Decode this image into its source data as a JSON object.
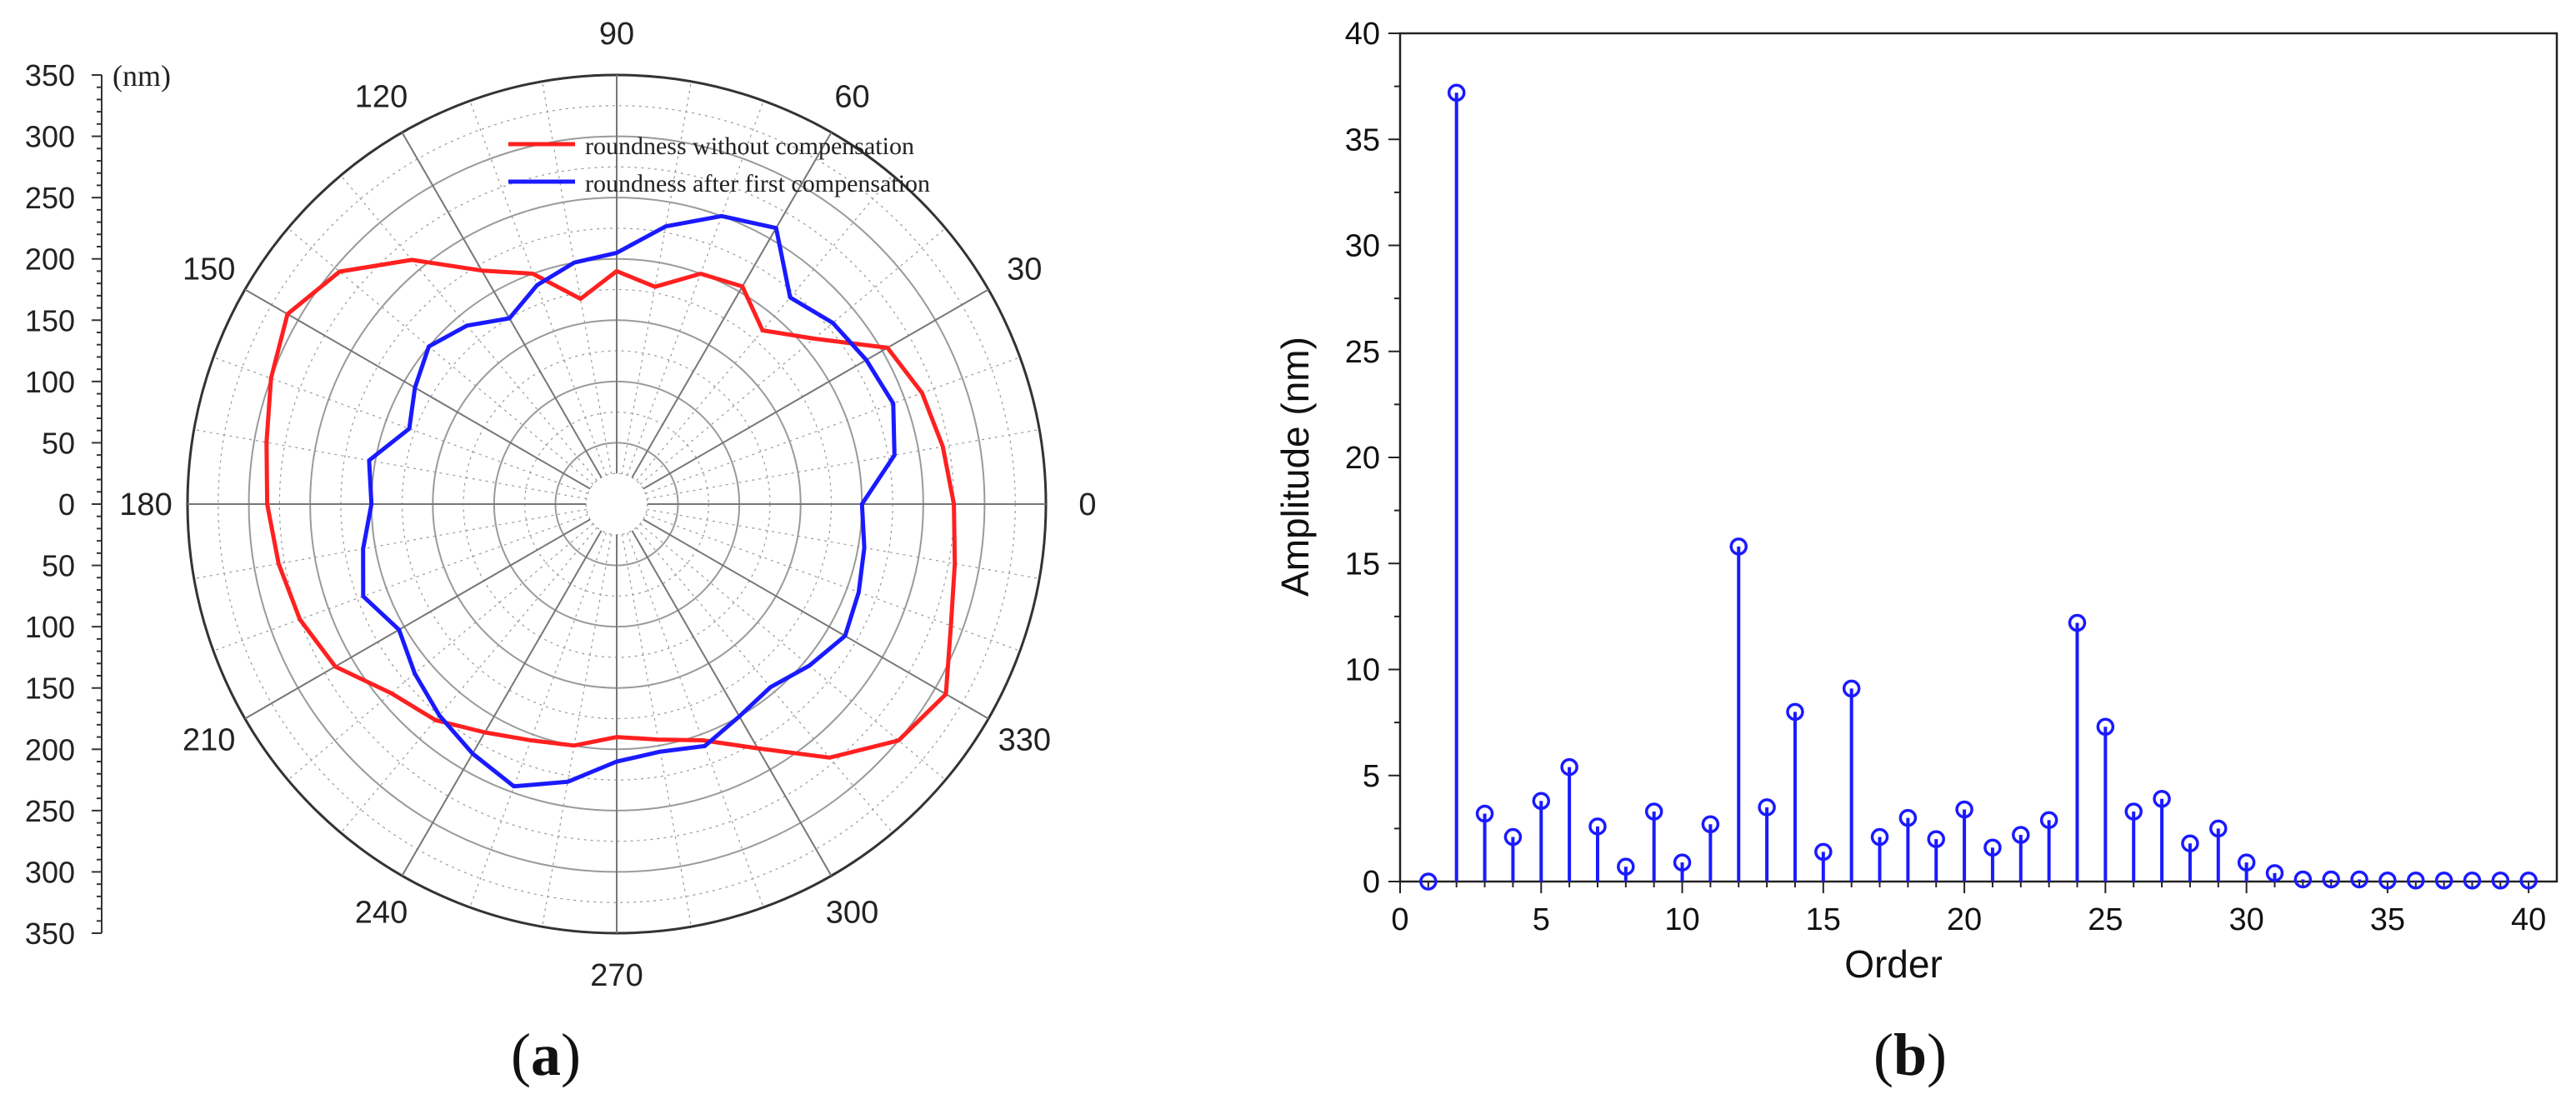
{
  "colors": {
    "red": "#ff2020",
    "blue": "#1a1aff",
    "grid": "#9a9a9a",
    "axis": "#222222"
  },
  "chart_data": [
    {
      "type": "polar-line",
      "panel_label": "a",
      "radial_unit": "(nm)",
      "radial_ticks": [
        "350",
        "300",
        "250",
        "200",
        "150",
        "100",
        "50",
        "0",
        "50",
        "100",
        "150",
        "200",
        "250",
        "300",
        "350"
      ],
      "angle_labels": [
        "0",
        "30",
        "60",
        "90",
        "120",
        "150",
        "180",
        "210",
        "240",
        "270",
        "300",
        "330"
      ],
      "rlim": [
        0,
        350
      ],
      "series": [
        {
          "name": "roundness without compensation",
          "color": "#ff2020",
          "theta": [
            0,
            10,
            20,
            30,
            40,
            50,
            60,
            70,
            80,
            90,
            100,
            110,
            120,
            130,
            140,
            150,
            160,
            170,
            180,
            190,
            200,
            210,
            220,
            230,
            240,
            250,
            260,
            270,
            280,
            290,
            300,
            310,
            320,
            330,
            340,
            350
          ],
          "r": [
            275,
            270,
            265,
            255,
            210,
            185,
            205,
            200,
            180,
            190,
            170,
            200,
            220,
            260,
            295,
            310,
            300,
            290,
            285,
            280,
            275,
            265,
            240,
            230,
            215,
            205,
            200,
            190,
            195,
            205,
            230,
            270,
            300,
            310,
            290,
            280
          ]
        },
        {
          "name": "roundness after first compensation",
          "color": "#1a1aff",
          "theta": [
            0,
            10,
            20,
            30,
            40,
            50,
            60,
            70,
            80,
            90,
            100,
            110,
            120,
            130,
            140,
            150,
            160,
            170,
            180,
            190,
            200,
            210,
            220,
            230,
            240,
            250,
            260,
            270,
            280,
            290,
            300,
            310,
            320,
            330,
            340,
            350
          ],
          "r": [
            200,
            230,
            240,
            235,
            230,
            220,
            260,
            250,
            230,
            205,
            200,
            190,
            175,
            190,
            200,
            190,
            180,
            205,
            200,
            210,
            220,
            205,
            215,
            225,
            235,
            245,
            230,
            210,
            205,
            210,
            200,
            195,
            205,
            215,
            210,
            205
          ]
        }
      ]
    },
    {
      "type": "stem",
      "panel_label": "b",
      "xlabel": "Order",
      "ylabel": "Amplitude (nm)",
      "xlim": [
        0,
        41
      ],
      "ylim": [
        0,
        40
      ],
      "xticks": [
        0,
        5,
        10,
        15,
        20,
        25,
        30,
        35,
        40
      ],
      "yticks": [
        0,
        5,
        10,
        15,
        20,
        25,
        30,
        35,
        40
      ],
      "x": [
        1,
        2,
        3,
        4,
        5,
        6,
        7,
        8,
        9,
        10,
        11,
        12,
        13,
        14,
        15,
        16,
        17,
        18,
        19,
        20,
        21,
        22,
        23,
        24,
        25,
        26,
        27,
        28,
        29,
        30,
        31,
        32,
        33,
        34,
        35,
        36,
        37,
        38,
        39,
        40
      ],
      "values": [
        0,
        37.2,
        3.2,
        2.1,
        3.8,
        5.4,
        2.6,
        0.7,
        3.3,
        0.9,
        2.7,
        15.8,
        3.5,
        8.0,
        1.4,
        9.1,
        2.1,
        3.0,
        2.0,
        3.4,
        1.6,
        2.2,
        2.9,
        12.2,
        7.3,
        3.3,
        3.9,
        1.8,
        2.5,
        0.9,
        0.4,
        0.1,
        0.1,
        0.1,
        0.05,
        0.05,
        0.05,
        0.05,
        0.05,
        0.05
      ]
    }
  ]
}
